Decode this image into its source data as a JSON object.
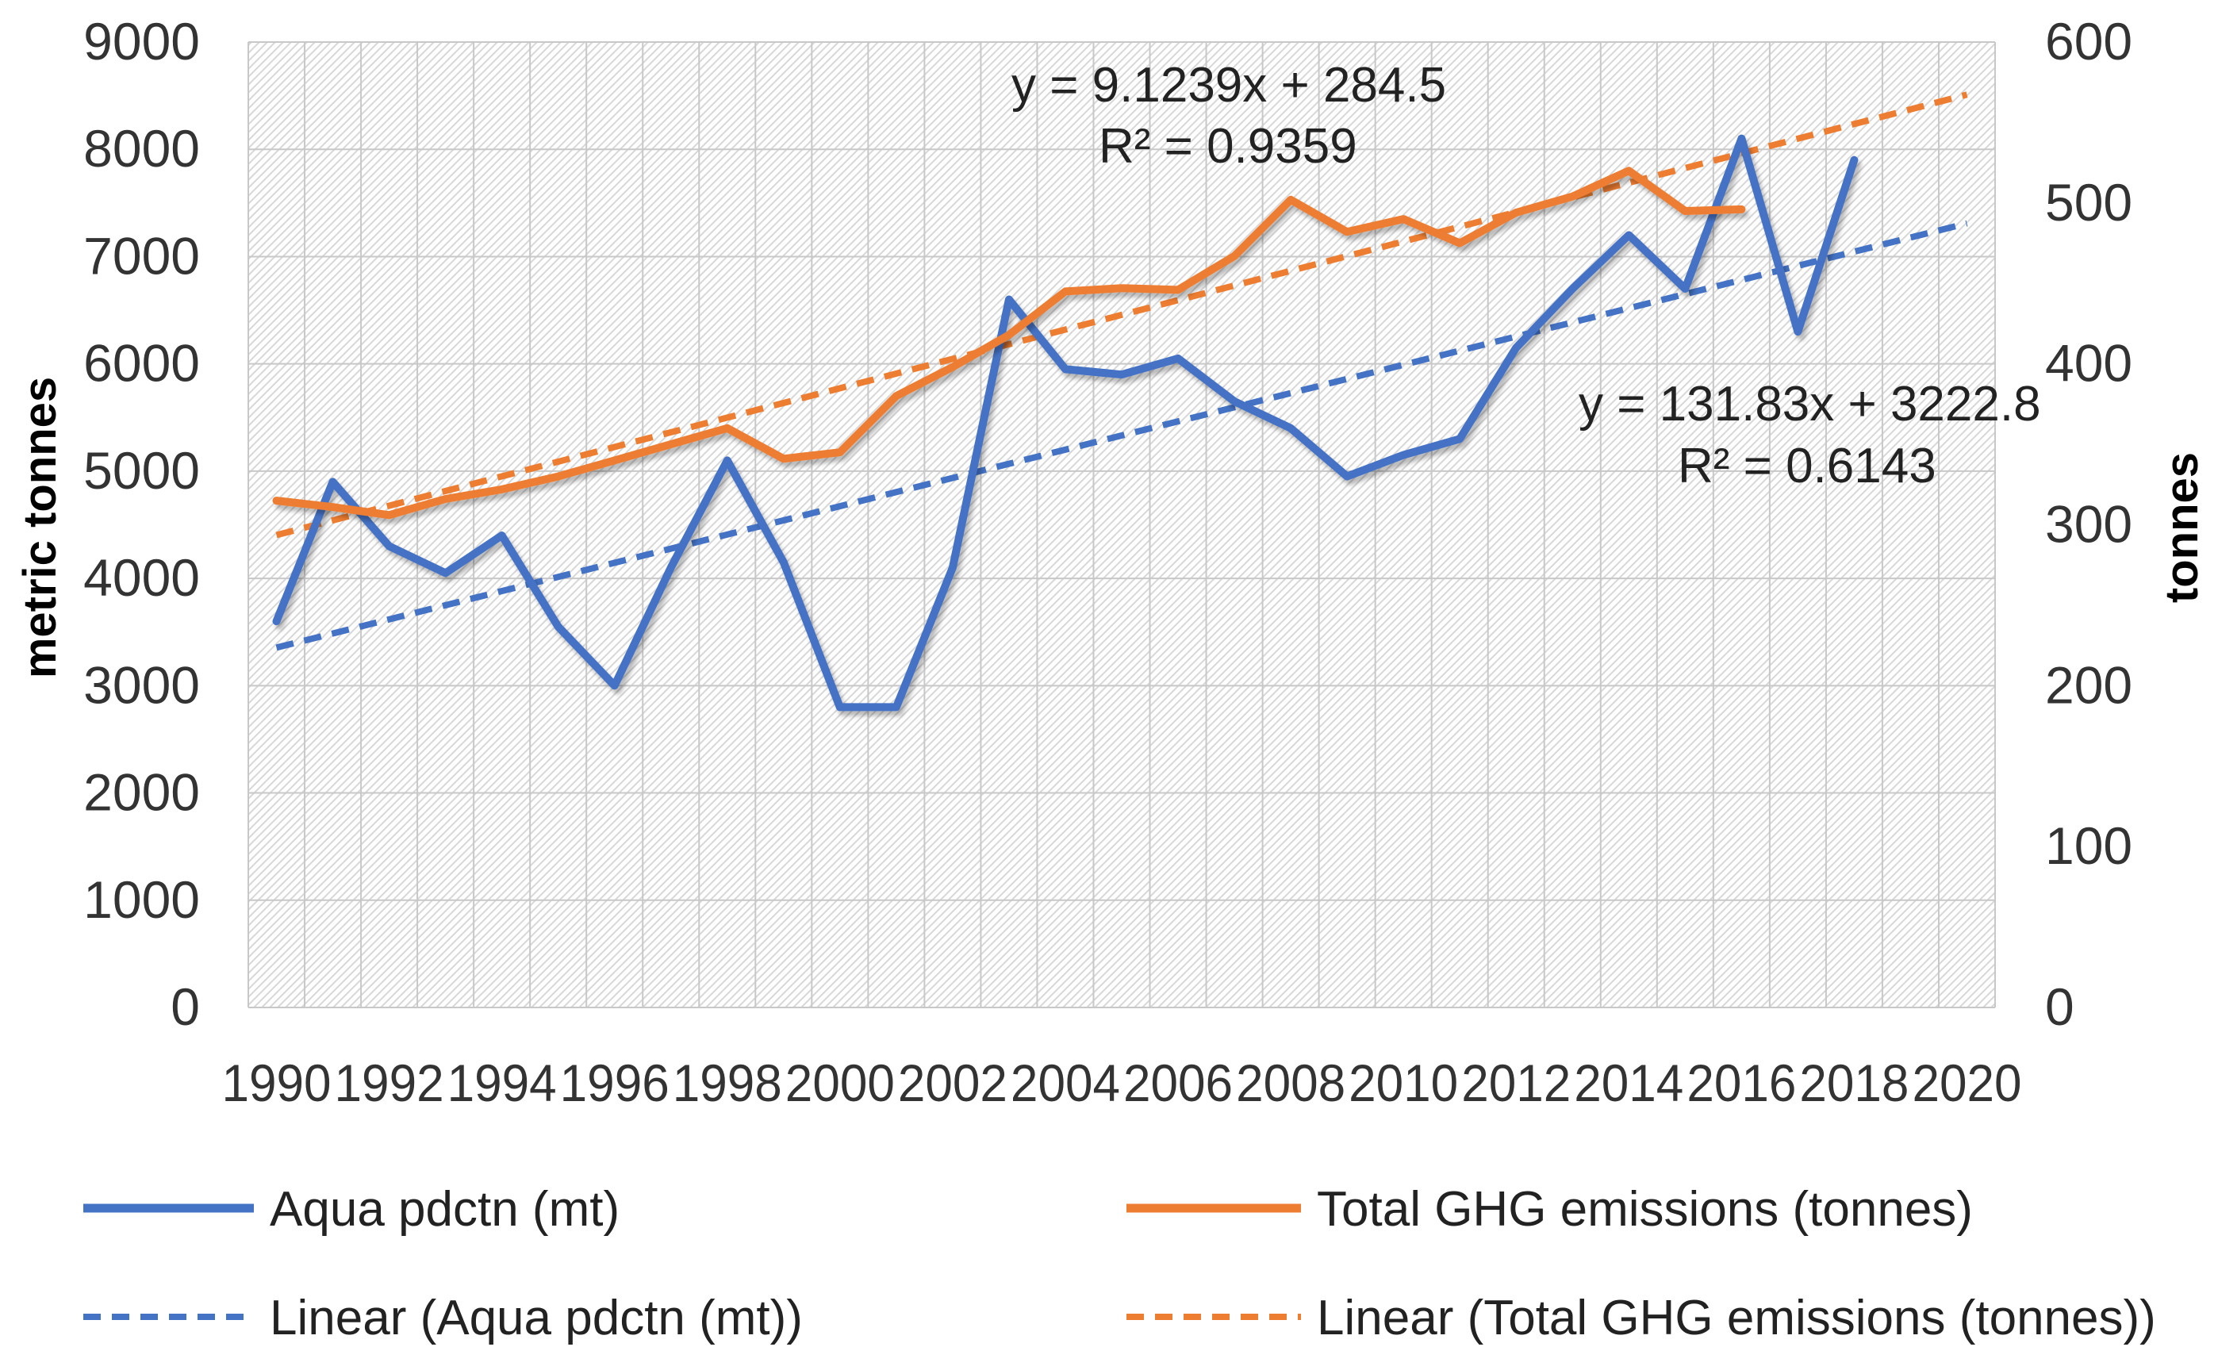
{
  "chart_data": {
    "type": "line",
    "title": "",
    "xlabel": "",
    "ylabel": "metric tonnes",
    "y2label": "tonnes",
    "xlim": [
      1990,
      2020
    ],
    "ylim": [
      0,
      9000
    ],
    "y2lim": [
      0,
      600
    ],
    "x_ticks": [
      1990,
      1992,
      1994,
      1996,
      1998,
      2000,
      2002,
      2004,
      2006,
      2008,
      2010,
      2012,
      2014,
      2016,
      2018,
      2020
    ],
    "y_ticks": [
      0,
      1000,
      2000,
      3000,
      4000,
      5000,
      6000,
      7000,
      8000,
      9000
    ],
    "y2_ticks": [
      0,
      100,
      200,
      300,
      400,
      500,
      600
    ],
    "grid": true,
    "series": [
      {
        "name": "Aqua pdctn (mt)",
        "axis": "left",
        "color": "#4472C4",
        "style": "solid",
        "x": [
          1990,
          1991,
          1992,
          1993,
          1994,
          1995,
          1996,
          1997,
          1998,
          1999,
          2000,
          2001,
          2002,
          2003,
          2004,
          2005,
          2006,
          2007,
          2008,
          2009,
          2010,
          2011,
          2012,
          2013,
          2014,
          2015,
          2016,
          2017,
          2018
        ],
        "values": [
          3600,
          4900,
          4300,
          4050,
          4400,
          3550,
          3000,
          4100,
          5100,
          4150,
          2800,
          2800,
          4100,
          6600,
          5950,
          5900,
          6050,
          5650,
          5400,
          4950,
          5150,
          5300,
          6150,
          6700,
          7200,
          6700,
          8100,
          6300,
          7900
        ]
      },
      {
        "name": "Total GHG emissions (tonnes)",
        "axis": "right",
        "color": "#ED7D31",
        "style": "solid",
        "x": [
          1990,
          1991,
          1992,
          1993,
          1994,
          1995,
          1996,
          1997,
          1998,
          1999,
          2000,
          2001,
          2002,
          2003,
          2004,
          2005,
          2006,
          2007,
          2008,
          2009,
          2010,
          2011,
          2012,
          2013,
          2014,
          2015,
          2016
        ],
        "values": [
          315,
          311,
          306,
          316,
          322,
          330,
          340,
          350,
          360,
          341,
          345,
          380,
          398,
          418,
          445,
          447,
          446,
          467,
          502,
          482,
          490,
          475,
          494,
          504,
          520,
          495,
          496
        ]
      },
      {
        "name": "Linear (Aqua pdctn (mt))",
        "axis": "left",
        "color": "#4472C4",
        "style": "dashed",
        "x": [
          1990,
          2020
        ],
        "values": [
          3354.6,
          7309.5
        ]
      },
      {
        "name": "Linear (Total GHG emissions (tonnes))",
        "axis": "right",
        "color": "#ED7D31",
        "style": "dashed",
        "x": [
          1990,
          2020
        ],
        "values": [
          293.6,
          567.3
        ]
      }
    ],
    "annotations": [
      {
        "id": "ghg_eq",
        "text": "y = 9.1239x + 284.5"
      },
      {
        "id": "ghg_r2",
        "text": "R² = 0.9359"
      },
      {
        "id": "aqua_eq",
        "text": "y = 131.83x + 3222.8"
      },
      {
        "id": "aqua_r2",
        "text": "R² = 0.6143"
      }
    ]
  }
}
